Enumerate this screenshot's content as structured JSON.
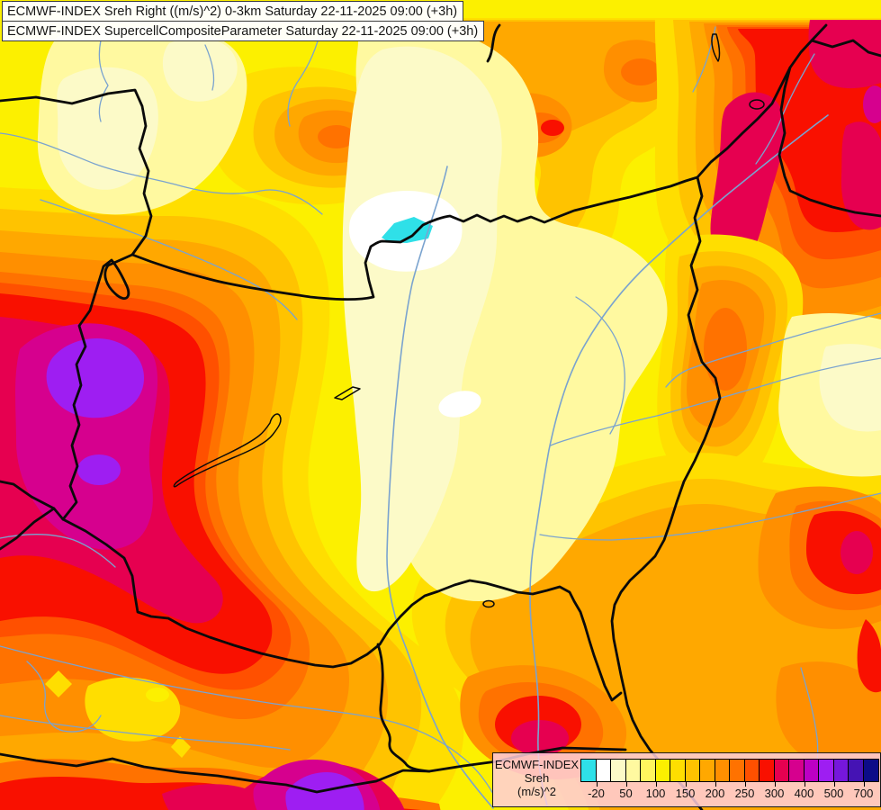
{
  "titles": {
    "line1": "ECMWF-INDEX Sreh Right ((m/s)^2) 0-3km Saturday 22-11-2025 09:00 (+3h)",
    "line2": "ECMWF-INDEX SupercellCompositeParameter Saturday 22-11-2025 09:00 (+3h)"
  },
  "legend": {
    "product": "ECMWF-INDEX",
    "parameter": "Sreh",
    "units": "(m/s)^2",
    "tick_labels": [
      "-20",
      "50",
      "100",
      "150",
      "200",
      "250",
      "300",
      "400",
      "500",
      "700"
    ],
    "swatch_colors": [
      "#2fe0e8",
      "#ffffff",
      "#fcfac8",
      "#fff9a0",
      "#fff55e",
      "#fcf000",
      "#ffde00",
      "#ffc300",
      "#ffa800",
      "#ff8f00",
      "#ff7200",
      "#ff5000",
      "#f91000",
      "#e60050",
      "#d6008e",
      "#bc00c4",
      "#9e1ef2",
      "#7617dc",
      "#4513b4",
      "#0c0c88"
    ]
  },
  "map": {
    "field_min_color": "#2fe0e8",
    "field_max_color": "#9e1ef2",
    "border_color": "#0a0a0a",
    "river_color": "#7aa3cf"
  }
}
